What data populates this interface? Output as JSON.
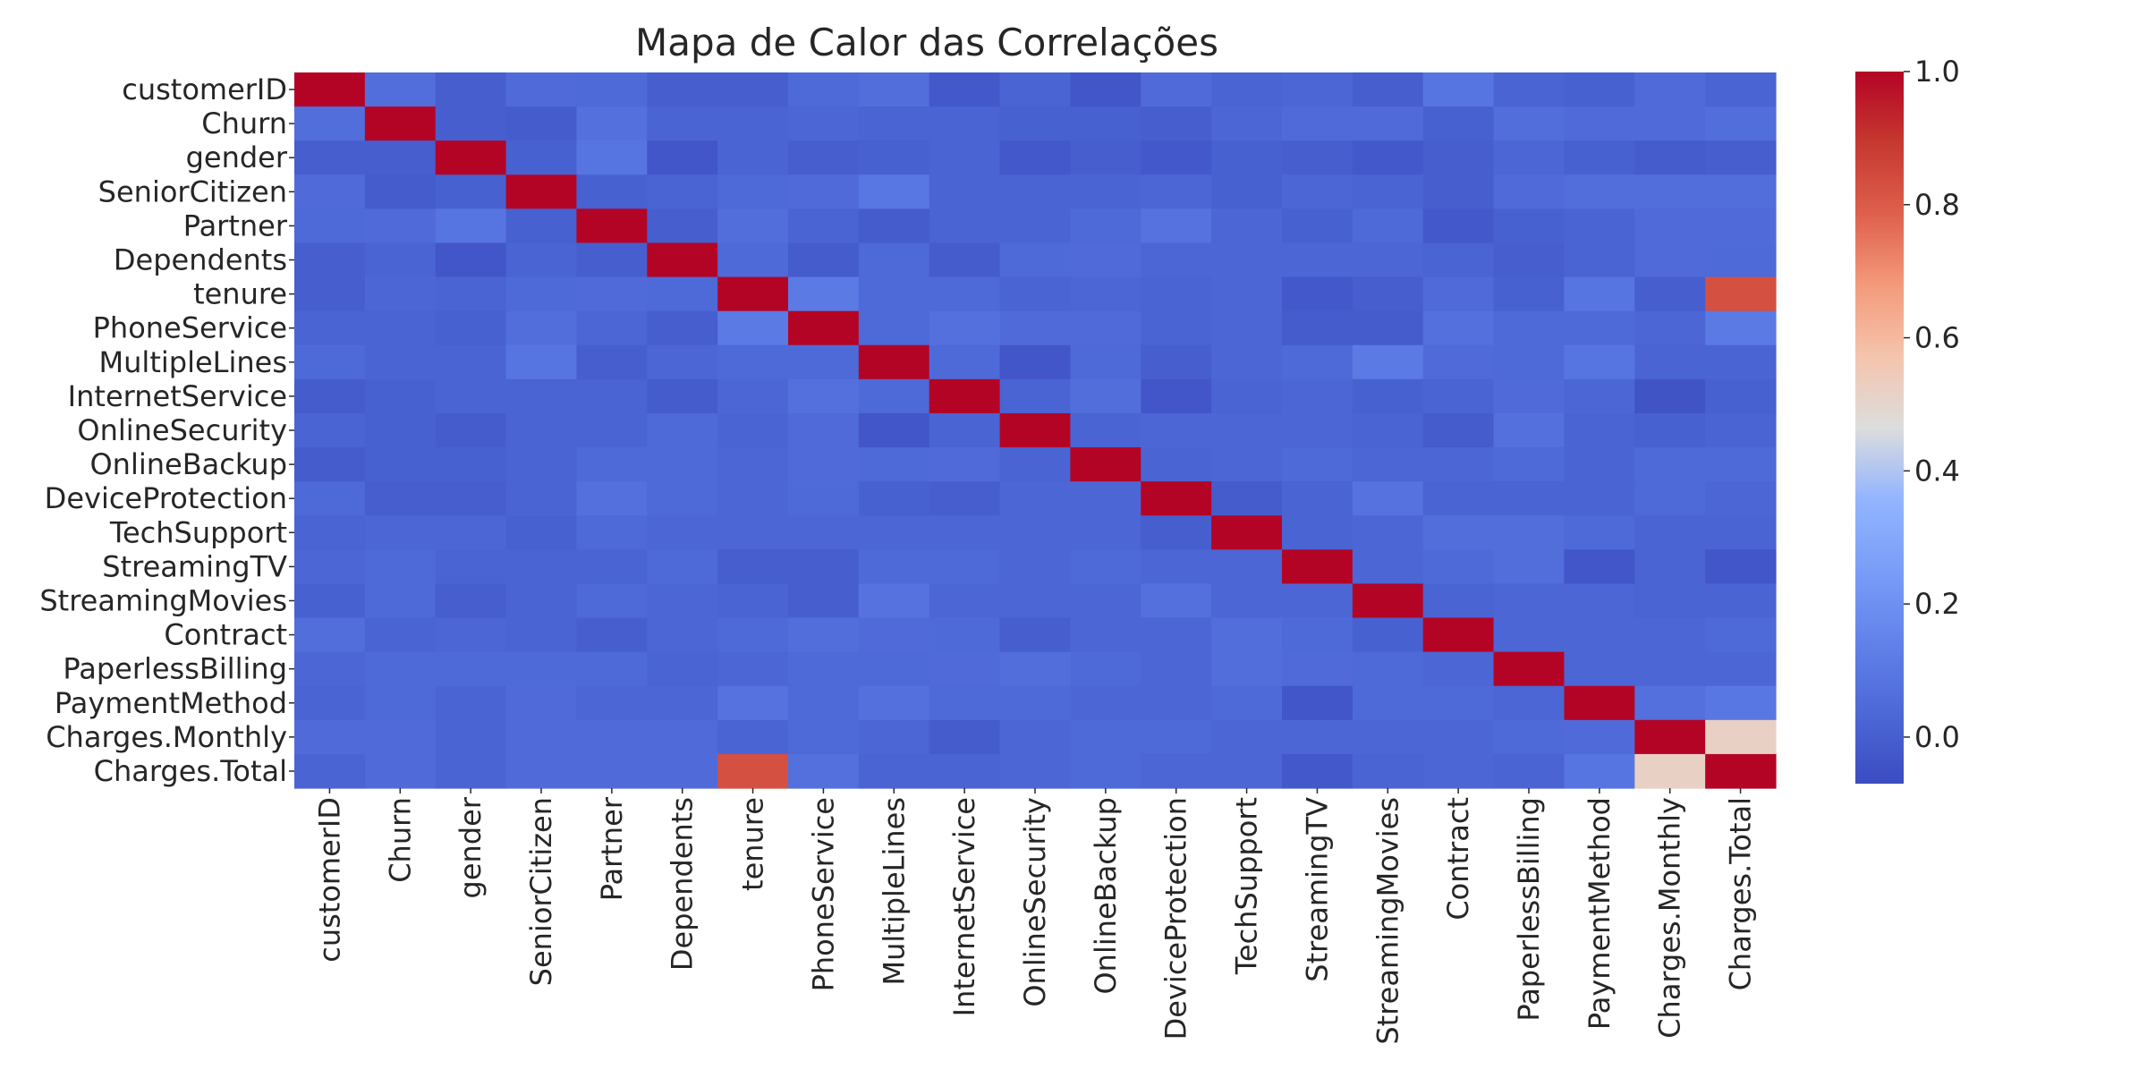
{
  "chart_data": {
    "type": "heatmap",
    "title": "Mapa de Calor das Correlações",
    "labels": [
      "customerID",
      "Churn",
      "gender",
      "SeniorCitizen",
      "Partner",
      "Dependents",
      "tenure",
      "PhoneService",
      "MultipleLines",
      "InternetService",
      "OnlineSecurity",
      "OnlineBackup",
      "DeviceProtection",
      "TechSupport",
      "StreamingTV",
      "StreamingMovies",
      "Contract",
      "PaperlessBilling",
      "PaymentMethod",
      "Charges.Monthly",
      "Charges.Total"
    ],
    "values": [
      [
        1.0,
        0.06,
        0.0,
        0.05,
        0.04,
        0.0,
        0.0,
        0.04,
        0.06,
        -0.02,
        0.02,
        -0.03,
        0.05,
        0.02,
        0.03,
        0.0,
        0.09,
        0.02,
        0.01,
        0.05,
        0.02
      ],
      [
        0.06,
        1.0,
        0.0,
        -0.01,
        0.07,
        0.02,
        0.02,
        0.03,
        0.02,
        0.02,
        0.01,
        0.01,
        0.0,
        0.03,
        0.05,
        0.05,
        0.01,
        0.06,
        0.05,
        0.05,
        0.06
      ],
      [
        0.0,
        0.0,
        1.0,
        0.01,
        0.09,
        -0.03,
        0.02,
        0.0,
        0.01,
        0.02,
        -0.02,
        0.0,
        -0.02,
        0.01,
        0.0,
        -0.02,
        0.0,
        0.03,
        0.01,
        -0.01,
        0.0
      ],
      [
        0.05,
        -0.01,
        0.01,
        1.0,
        0.01,
        0.02,
        0.04,
        0.05,
        0.1,
        0.02,
        0.02,
        0.02,
        0.03,
        0.01,
        0.03,
        0.02,
        0.0,
        0.05,
        0.06,
        0.06,
        0.06
      ],
      [
        0.04,
        0.05,
        0.09,
        0.01,
        1.0,
        0.0,
        0.06,
        0.02,
        -0.01,
        0.02,
        0.02,
        0.04,
        0.08,
        0.03,
        0.01,
        0.04,
        -0.02,
        0.01,
        0.02,
        0.05,
        0.05
      ],
      [
        0.0,
        0.02,
        -0.03,
        0.02,
        0.0,
        1.0,
        0.04,
        -0.01,
        0.04,
        -0.01,
        0.04,
        0.05,
        0.03,
        0.03,
        0.03,
        0.03,
        0.02,
        0.0,
        0.02,
        0.05,
        0.04
      ],
      [
        0.0,
        0.03,
        0.02,
        0.04,
        0.05,
        0.04,
        1.0,
        0.11,
        0.04,
        0.04,
        0.02,
        0.03,
        0.02,
        0.03,
        -0.02,
        0.0,
        0.05,
        0.01,
        0.09,
        0.0,
        0.83
      ],
      [
        0.02,
        0.02,
        0.01,
        0.06,
        0.03,
        0.0,
        0.11,
        1.0,
        0.04,
        0.07,
        0.05,
        0.05,
        0.02,
        0.03,
        -0.01,
        -0.01,
        0.07,
        0.04,
        0.04,
        0.03,
        0.11
      ],
      [
        0.04,
        0.02,
        0.02,
        0.09,
        0.0,
        0.03,
        0.04,
        0.04,
        1.0,
        0.04,
        -0.03,
        0.04,
        0.0,
        0.03,
        0.04,
        0.11,
        0.05,
        0.04,
        0.09,
        0.02,
        0.02
      ],
      [
        -0.01,
        0.01,
        0.02,
        0.02,
        0.02,
        -0.01,
        0.03,
        0.07,
        0.04,
        1.0,
        0.02,
        0.06,
        -0.03,
        0.02,
        0.03,
        0.01,
        0.02,
        0.05,
        0.03,
        -0.04,
        0.01
      ],
      [
        0.02,
        0.01,
        -0.01,
        0.02,
        0.02,
        0.04,
        0.02,
        0.05,
        -0.03,
        0.02,
        1.0,
        0.02,
        0.03,
        0.03,
        0.03,
        0.02,
        -0.01,
        0.07,
        0.02,
        0.01,
        0.02
      ],
      [
        -0.01,
        0.01,
        0.01,
        0.02,
        0.04,
        0.04,
        0.03,
        0.05,
        0.04,
        0.05,
        0.02,
        1.0,
        0.02,
        0.03,
        0.04,
        0.03,
        0.03,
        0.04,
        0.02,
        0.04,
        0.04
      ],
      [
        0.04,
        0.0,
        0.0,
        0.02,
        0.07,
        0.04,
        0.03,
        0.04,
        0.01,
        0.0,
        0.03,
        0.03,
        1.0,
        -0.01,
        0.02,
        0.08,
        0.02,
        0.02,
        0.02,
        0.04,
        0.03
      ],
      [
        0.02,
        0.03,
        0.03,
        0.01,
        0.04,
        0.03,
        0.03,
        0.03,
        0.03,
        0.03,
        0.03,
        0.03,
        0.0,
        1.0,
        0.02,
        0.03,
        0.06,
        0.06,
        0.04,
        0.02,
        0.02
      ],
      [
        0.03,
        0.04,
        0.02,
        0.02,
        0.02,
        0.04,
        0.0,
        0.0,
        0.04,
        0.04,
        0.03,
        0.04,
        0.03,
        0.03,
        1.0,
        0.03,
        0.04,
        0.06,
        -0.03,
        0.02,
        -0.03
      ],
      [
        0.01,
        0.04,
        0.0,
        0.02,
        0.04,
        0.03,
        0.02,
        0.0,
        0.08,
        0.03,
        0.03,
        0.03,
        0.07,
        0.03,
        0.03,
        1.0,
        0.02,
        0.03,
        0.03,
        0.02,
        0.02
      ],
      [
        0.06,
        0.02,
        0.03,
        0.02,
        0.0,
        0.03,
        0.04,
        0.06,
        0.05,
        0.04,
        0.0,
        0.03,
        0.03,
        0.06,
        0.04,
        0.01,
        1.0,
        0.03,
        0.03,
        0.03,
        0.04
      ],
      [
        0.03,
        0.04,
        0.04,
        0.04,
        0.04,
        0.02,
        0.03,
        0.04,
        0.04,
        0.05,
        0.06,
        0.04,
        0.03,
        0.06,
        0.05,
        0.04,
        0.03,
        1.0,
        0.03,
        0.03,
        0.03
      ],
      [
        0.02,
        0.04,
        0.02,
        0.05,
        0.03,
        0.03,
        0.08,
        0.04,
        0.07,
        0.04,
        0.04,
        0.03,
        0.03,
        0.04,
        -0.03,
        0.04,
        0.04,
        0.03,
        1.0,
        0.07,
        0.1
      ],
      [
        0.05,
        0.05,
        0.02,
        0.05,
        0.05,
        0.05,
        0.02,
        0.04,
        0.03,
        -0.01,
        0.03,
        0.04,
        0.04,
        0.03,
        0.03,
        0.03,
        0.03,
        0.04,
        0.05,
        1.0,
        0.52
      ],
      [
        0.02,
        0.05,
        0.02,
        0.05,
        0.05,
        0.05,
        0.83,
        0.07,
        0.02,
        0.02,
        0.03,
        0.04,
        0.03,
        0.03,
        -0.02,
        0.02,
        0.03,
        0.02,
        0.09,
        0.52,
        1.0
      ]
    ],
    "colorbar": {
      "vmin": -0.07,
      "vmax": 1.0,
      "ticks": [
        0.0,
        0.2,
        0.4,
        0.6,
        0.8,
        1.0
      ],
      "tick_labels": [
        "0.0",
        "0.2",
        "0.4",
        "0.6",
        "0.8",
        "1.0"
      ],
      "colormap": "coolwarm"
    },
    "colors": {
      "text": "#262626",
      "background": "#ffffff"
    }
  }
}
